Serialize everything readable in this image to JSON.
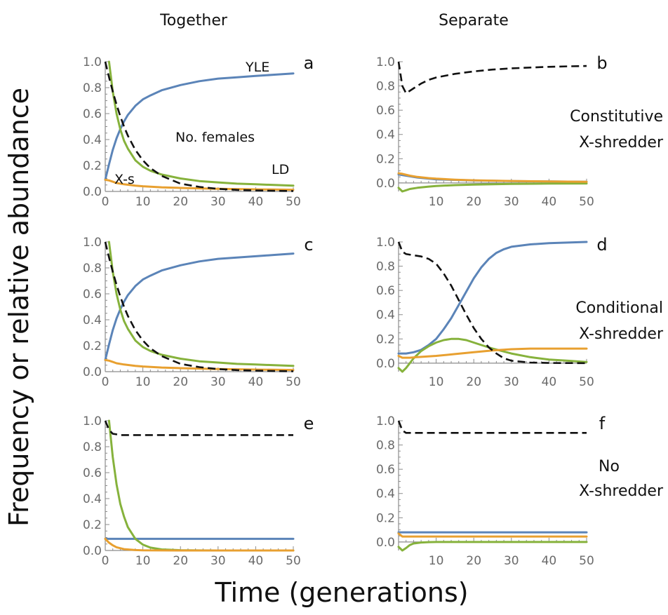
{
  "figure": {
    "column_titles": [
      "Together",
      "Separate"
    ],
    "ylabel": "Frequency or relative abundance",
    "xlabel": "Time (generations)",
    "row_labels": [
      [
        "Constitutive",
        "X-shredder"
      ],
      [
        "Conditional",
        "X-shredder"
      ],
      [
        "No",
        "X-shredder"
      ]
    ]
  },
  "colors": {
    "YLE": "#5b84b8",
    "LD": "#86b23c",
    "X-s": "#e8a030",
    "No. females": "#111111"
  },
  "chart_data": [
    {
      "panel": "a",
      "type": "line",
      "xlim": [
        0,
        50
      ],
      "ylim": [
        0,
        1
      ],
      "annotations": [
        "YLE",
        "No. females",
        "LD",
        "X-s"
      ],
      "series": [
        {
          "name": "YLE",
          "x": [
            0,
            1,
            2,
            3,
            4,
            5,
            6,
            8,
            10,
            12,
            15,
            20,
            25,
            30,
            35,
            40,
            45,
            50
          ],
          "y": [
            0.09,
            0.21,
            0.32,
            0.41,
            0.48,
            0.54,
            0.59,
            0.66,
            0.71,
            0.74,
            0.78,
            0.82,
            0.85,
            0.87,
            0.88,
            0.89,
            0.9,
            0.91
          ]
        },
        {
          "name": "LD",
          "x": [
            1,
            2,
            3,
            4,
            5,
            6,
            8,
            10,
            12,
            15,
            20,
            25,
            30,
            35,
            40,
            45,
            50
          ],
          "y": [
            1.0,
            0.77,
            0.6,
            0.48,
            0.39,
            0.33,
            0.24,
            0.19,
            0.16,
            0.13,
            0.1,
            0.08,
            0.07,
            0.06,
            0.055,
            0.05,
            0.045
          ]
        },
        {
          "name": "X-s",
          "x": [
            0,
            1,
            2,
            3,
            5,
            8,
            10,
            15,
            20,
            30,
            40,
            50
          ],
          "y": [
            0.09,
            0.085,
            0.075,
            0.065,
            0.055,
            0.045,
            0.04,
            0.032,
            0.027,
            0.02,
            0.016,
            0.013
          ]
        },
        {
          "name": "No. females",
          "x": [
            0,
            1,
            2,
            3,
            4,
            5,
            6,
            8,
            10,
            12,
            15,
            20,
            25,
            30,
            35,
            40,
            45,
            50
          ],
          "y": [
            1.0,
            0.88,
            0.77,
            0.67,
            0.58,
            0.5,
            0.43,
            0.32,
            0.24,
            0.18,
            0.12,
            0.06,
            0.035,
            0.02,
            0.012,
            0.008,
            0.005,
            0.003
          ]
        }
      ]
    },
    {
      "panel": "b",
      "type": "line",
      "xlim": [
        0,
        50
      ],
      "ylim": [
        -0.07,
        1
      ],
      "series": [
        {
          "name": "YLE",
          "x": [
            0,
            5,
            10,
            20,
            30,
            40,
            50
          ],
          "y": [
            0.07,
            0.045,
            0.03,
            0.02,
            0.015,
            0.012,
            0.01
          ]
        },
        {
          "name": "LD",
          "x": [
            0,
            1,
            2,
            3,
            5,
            8,
            10,
            15,
            20,
            30,
            40,
            50
          ],
          "y": [
            -0.04,
            -0.07,
            -0.06,
            -0.05,
            -0.04,
            -0.03,
            -0.025,
            -0.018,
            -0.014,
            -0.008,
            -0.005,
            -0.004
          ]
        },
        {
          "name": "X-s",
          "x": [
            0,
            1,
            3,
            5,
            8,
            10,
            15,
            20,
            30,
            40,
            50
          ],
          "y": [
            0.08,
            0.075,
            0.06,
            0.05,
            0.04,
            0.035,
            0.027,
            0.022,
            0.016,
            0.012,
            0.01
          ]
        },
        {
          "name": "No. females",
          "x": [
            0,
            1,
            2,
            4,
            6,
            8,
            10,
            15,
            20,
            25,
            30,
            35,
            40,
            45,
            50
          ],
          "y": [
            1.0,
            0.8,
            0.74,
            0.78,
            0.82,
            0.85,
            0.87,
            0.9,
            0.92,
            0.935,
            0.945,
            0.952,
            0.958,
            0.962,
            0.965
          ]
        }
      ]
    },
    {
      "panel": "c",
      "type": "line",
      "xlim": [
        0,
        50
      ],
      "ylim": [
        0,
        1
      ],
      "series": [
        {
          "name": "YLE",
          "x": [
            0,
            1,
            2,
            3,
            4,
            5,
            6,
            8,
            10,
            12,
            15,
            20,
            25,
            30,
            35,
            40,
            45,
            50
          ],
          "y": [
            0.09,
            0.21,
            0.32,
            0.41,
            0.48,
            0.54,
            0.59,
            0.66,
            0.71,
            0.74,
            0.78,
            0.82,
            0.85,
            0.87,
            0.88,
            0.89,
            0.9,
            0.91
          ]
        },
        {
          "name": "LD",
          "x": [
            1,
            2,
            3,
            4,
            5,
            6,
            8,
            10,
            12,
            15,
            20,
            25,
            30,
            35,
            40,
            45,
            50
          ],
          "y": [
            1.0,
            0.77,
            0.6,
            0.48,
            0.39,
            0.33,
            0.24,
            0.19,
            0.16,
            0.13,
            0.1,
            0.08,
            0.07,
            0.06,
            0.055,
            0.05,
            0.045
          ]
        },
        {
          "name": "X-s",
          "x": [
            0,
            1,
            2,
            3,
            5,
            8,
            10,
            15,
            20,
            30,
            40,
            50
          ],
          "y": [
            0.09,
            0.085,
            0.075,
            0.065,
            0.055,
            0.045,
            0.04,
            0.032,
            0.027,
            0.02,
            0.016,
            0.013
          ]
        },
        {
          "name": "No. females",
          "x": [
            0,
            1,
            2,
            3,
            4,
            5,
            6,
            8,
            10,
            12,
            15,
            20,
            25,
            30,
            35,
            40,
            45,
            50
          ],
          "y": [
            1.0,
            0.88,
            0.77,
            0.67,
            0.58,
            0.5,
            0.43,
            0.32,
            0.24,
            0.18,
            0.12,
            0.06,
            0.035,
            0.02,
            0.012,
            0.008,
            0.005,
            0.003
          ]
        }
      ]
    },
    {
      "panel": "d",
      "type": "line",
      "xlim": [
        0,
        50
      ],
      "ylim": [
        -0.07,
        1
      ],
      "series": [
        {
          "name": "YLE",
          "x": [
            0,
            2,
            4,
            6,
            8,
            10,
            12,
            14,
            16,
            18,
            20,
            22,
            24,
            26,
            28,
            30,
            35,
            40,
            45,
            50
          ],
          "y": [
            0.08,
            0.08,
            0.09,
            0.11,
            0.15,
            0.2,
            0.28,
            0.37,
            0.48,
            0.59,
            0.7,
            0.79,
            0.86,
            0.91,
            0.94,
            0.96,
            0.98,
            0.99,
            0.995,
            1.0
          ]
        },
        {
          "name": "LD",
          "x": [
            0,
            1,
            2,
            4,
            6,
            8,
            10,
            12,
            14,
            15,
            16,
            18,
            20,
            22,
            25,
            30,
            35,
            40,
            45,
            50
          ],
          "y": [
            -0.04,
            -0.07,
            -0.04,
            0.04,
            0.1,
            0.14,
            0.17,
            0.19,
            0.2,
            0.2,
            0.2,
            0.19,
            0.17,
            0.15,
            0.12,
            0.08,
            0.05,
            0.03,
            0.02,
            0.01
          ]
        },
        {
          "name": "X-s",
          "x": [
            0,
            1,
            3,
            5,
            10,
            15,
            20,
            25,
            30,
            35,
            40,
            45,
            50
          ],
          "y": [
            0.06,
            0.045,
            0.045,
            0.05,
            0.06,
            0.075,
            0.09,
            0.105,
            0.115,
            0.12,
            0.12,
            0.12,
            0.12
          ]
        },
        {
          "name": "No. females",
          "x": [
            0,
            1,
            2,
            4,
            6,
            8,
            10,
            12,
            14,
            16,
            18,
            20,
            22,
            24,
            26,
            28,
            30,
            35,
            40,
            45,
            50
          ],
          "y": [
            1.0,
            0.92,
            0.9,
            0.89,
            0.88,
            0.86,
            0.82,
            0.74,
            0.64,
            0.52,
            0.4,
            0.29,
            0.2,
            0.13,
            0.08,
            0.04,
            0.02,
            0.005,
            0.002,
            0.001,
            0.0
          ]
        }
      ]
    },
    {
      "panel": "e",
      "type": "line",
      "xlim": [
        0,
        50
      ],
      "ylim": [
        0,
        1
      ],
      "series": [
        {
          "name": "YLE",
          "x": [
            0,
            50
          ],
          "y": [
            0.09,
            0.09
          ]
        },
        {
          "name": "LD",
          "x": [
            1,
            2,
            3,
            4,
            5,
            6,
            8,
            10,
            12,
            15,
            20,
            25,
            30,
            40,
            50
          ],
          "y": [
            1.0,
            0.72,
            0.51,
            0.36,
            0.26,
            0.18,
            0.09,
            0.045,
            0.022,
            0.008,
            0.002,
            0.0005,
            0.0,
            0.0,
            0.0
          ]
        },
        {
          "name": "X-s",
          "x": [
            0,
            1,
            2,
            3,
            5,
            8,
            10,
            20,
            50
          ],
          "y": [
            0.09,
            0.06,
            0.04,
            0.025,
            0.01,
            0.003,
            0.001,
            0.0,
            0.0
          ]
        },
        {
          "name": "No. females",
          "x": [
            0,
            1,
            2,
            3,
            4,
            50
          ],
          "y": [
            1.0,
            0.93,
            0.9,
            0.895,
            0.89,
            0.89
          ]
        }
      ]
    },
    {
      "panel": "f",
      "type": "line",
      "xlim": [
        0,
        50
      ],
      "ylim": [
        -0.07,
        1
      ],
      "series": [
        {
          "name": "YLE",
          "x": [
            0,
            1,
            2,
            50
          ],
          "y": [
            0.08,
            0.08,
            0.08,
            0.08
          ]
        },
        {
          "name": "LD",
          "x": [
            0,
            1,
            2,
            3,
            4,
            6,
            8,
            10,
            15,
            20,
            30,
            50
          ],
          "y": [
            -0.04,
            -0.07,
            -0.05,
            -0.025,
            -0.012,
            -0.004,
            -0.001,
            0.0,
            0.0,
            0.0,
            0.0,
            0.0
          ]
        },
        {
          "name": "X-s",
          "x": [
            0,
            1,
            2,
            50
          ],
          "y": [
            0.07,
            0.045,
            0.045,
            0.045
          ]
        },
        {
          "name": "No. females",
          "x": [
            0,
            1,
            2,
            3,
            50
          ],
          "y": [
            1.0,
            0.92,
            0.9,
            0.9,
            0.9
          ]
        }
      ]
    }
  ]
}
